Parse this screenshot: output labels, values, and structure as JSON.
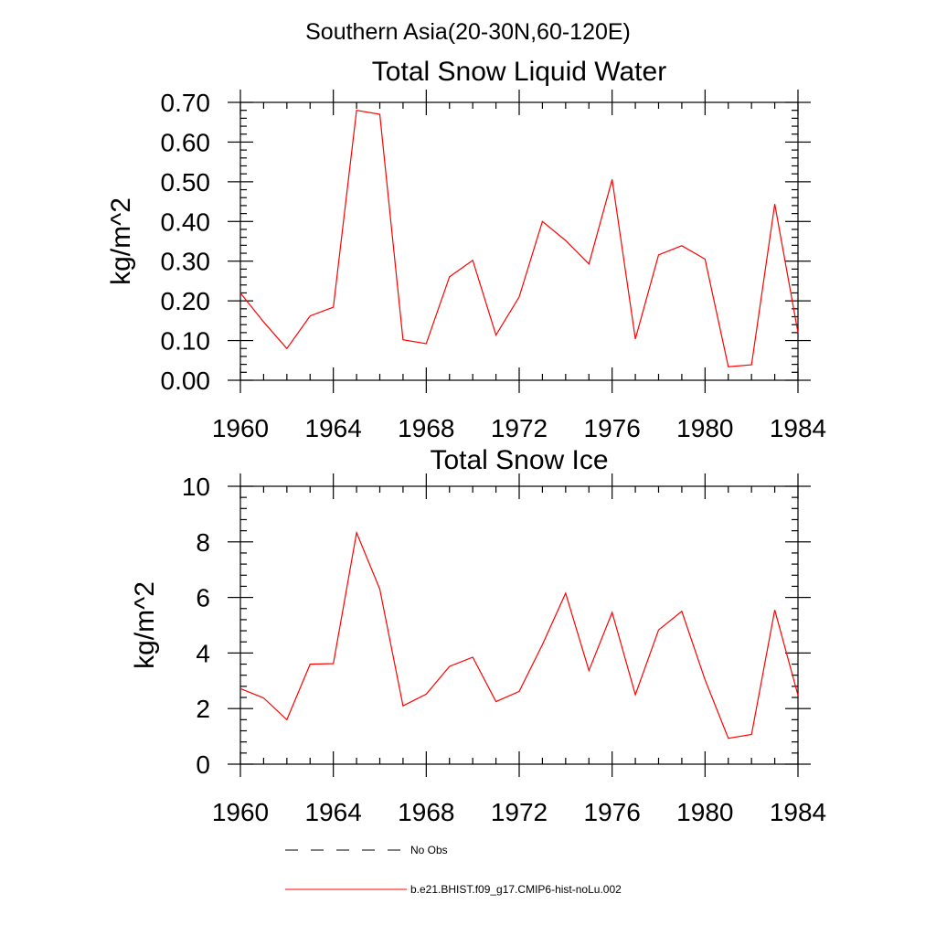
{
  "suptitle": "Southern Asia(20-30N,60-120E)",
  "legend": {
    "items": [
      {
        "label": "No Obs",
        "style": "dashed",
        "color": "#000000"
      },
      {
        "label": "b.e21.BHIST.f09_g17.CMIP6-hist-noLu.002",
        "style": "solid",
        "color": "#ff0000"
      }
    ]
  },
  "chart_data": [
    {
      "type": "line",
      "title": "Total Snow Liquid Water",
      "xlabel": "",
      "ylabel": "kg/m^2",
      "xlim": [
        1960,
        1984
      ],
      "ylim": [
        0,
        0.7
      ],
      "xticks": [
        "1960",
        "1964",
        "1968",
        "1972",
        "1976",
        "1980",
        "1984"
      ],
      "yticks": [
        "0.00",
        "0.10",
        "0.20",
        "0.30",
        "0.40",
        "0.50",
        "0.60",
        "0.70"
      ],
      "x": [
        1960,
        1961,
        1962,
        1963,
        1964,
        1965,
        1966,
        1967,
        1968,
        1969,
        1970,
        1971,
        1972,
        1973,
        1974,
        1975,
        1976,
        1977,
        1978,
        1979,
        1980,
        1981,
        1982,
        1983,
        1984
      ],
      "series": [
        {
          "name": "b.e21.BHIST.f09_g17.CMIP6-hist-noLu.002",
          "color": "#ff0000",
          "values": [
            0.22,
            0.147,
            0.08,
            0.162,
            0.184,
            0.68,
            0.67,
            0.102,
            0.092,
            0.261,
            0.302,
            0.114,
            0.21,
            0.4,
            0.352,
            0.293,
            0.506,
            0.104,
            0.316,
            0.339,
            0.305,
            0.034,
            0.039,
            0.444,
            0.12
          ]
        }
      ]
    },
    {
      "type": "line",
      "title": "Total Snow Ice",
      "xlabel": "",
      "ylabel": "kg/m^2",
      "xlim": [
        1960,
        1984
      ],
      "ylim": [
        0,
        10
      ],
      "xticks": [
        "1960",
        "1964",
        "1968",
        "1972",
        "1976",
        "1980",
        "1984"
      ],
      "yticks": [
        "0",
        "2",
        "4",
        "6",
        "8",
        "10"
      ],
      "x": [
        1960,
        1961,
        1962,
        1963,
        1964,
        1965,
        1966,
        1967,
        1968,
        1969,
        1970,
        1971,
        1972,
        1973,
        1974,
        1975,
        1976,
        1977,
        1978,
        1979,
        1980,
        1981,
        1982,
        1983,
        1984
      ],
      "series": [
        {
          "name": "b.e21.BHIST.f09_g17.CMIP6-hist-noLu.002",
          "color": "#ff0000",
          "values": [
            2.72,
            2.38,
            1.6,
            3.6,
            3.62,
            8.33,
            6.3,
            2.1,
            2.52,
            3.52,
            3.85,
            2.25,
            2.62,
            4.3,
            6.15,
            3.37,
            5.46,
            2.5,
            4.83,
            5.5,
            3.04,
            0.93,
            1.07,
            5.55,
            2.48
          ]
        }
      ]
    }
  ]
}
